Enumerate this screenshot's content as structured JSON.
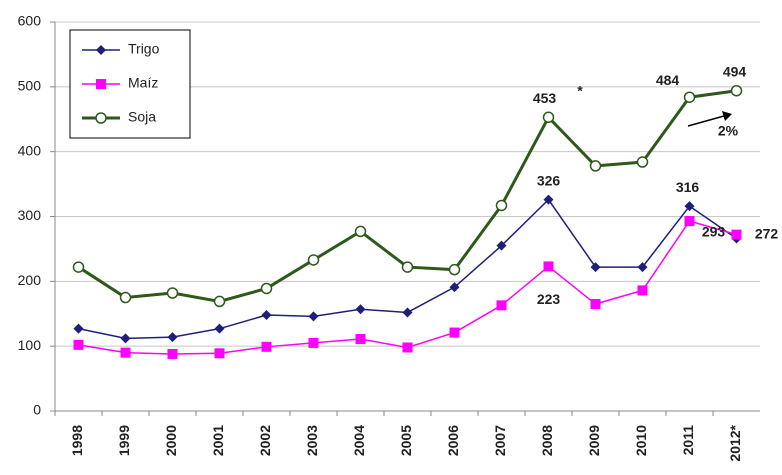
{
  "chart_data": {
    "type": "line",
    "categories": [
      "1998",
      "1999",
      "2000",
      "2001",
      "2002",
      "2003",
      "2004",
      "2005",
      "2006",
      "2007",
      "2008",
      "2009",
      "2010",
      "2011",
      "2012*"
    ],
    "series": [
      {
        "name": "Trigo",
        "color": "#1f1f7a",
        "marker": "diamond",
        "values": [
          127,
          112,
          114,
          127,
          148,
          146,
          157,
          152,
          191,
          255,
          326,
          222,
          222,
          316,
          266
        ],
        "value_labels": [
          null,
          null,
          null,
          null,
          null,
          null,
          null,
          null,
          null,
          null,
          "326",
          null,
          null,
          "316",
          null
        ]
      },
      {
        "name": "Maíz",
        "color": "#ff00ff",
        "marker": "square",
        "values": [
          102,
          90,
          88,
          89,
          99,
          105,
          111,
          98,
          121,
          163,
          223,
          165,
          186,
          293,
          272
        ],
        "value_labels": [
          null,
          null,
          null,
          null,
          null,
          null,
          null,
          null,
          null,
          null,
          "223",
          null,
          null,
          "293",
          "272"
        ]
      },
      {
        "name": "Soja",
        "color": "#2d5a1b",
        "marker": "circle",
        "values": [
          222,
          175,
          182,
          169,
          189,
          233,
          277,
          222,
          218,
          317,
          453,
          378,
          384,
          484,
          494
        ],
        "value_labels": [
          null,
          null,
          null,
          null,
          null,
          null,
          null,
          null,
          null,
          null,
          "453",
          null,
          null,
          "484",
          "494"
        ]
      }
    ],
    "annotations": [
      "*",
      "2%"
    ],
    "ylim": [
      0,
      600
    ],
    "yticks": [
      0,
      100,
      200,
      300,
      400,
      500,
      600
    ],
    "grid": true,
    "legend": "upper left"
  }
}
